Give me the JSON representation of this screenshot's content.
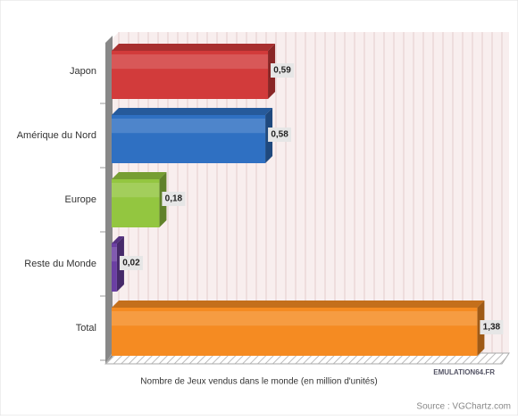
{
  "chart_data": {
    "type": "bar3d",
    "categories": [
      "Japon",
      "Amérique du Nord",
      "Europe",
      "Reste du Monde",
      "Total"
    ],
    "values": [
      0.59,
      0.58,
      0.18,
      0.02,
      1.38
    ],
    "value_labels": [
      "0,59",
      "0,58",
      "0,18",
      "0,02",
      "1,38"
    ],
    "colors": [
      "#d23b3b",
      "#2f70c2",
      "#93c640",
      "#6b3fa3",
      "#f58b22"
    ],
    "xlim": [
      0,
      1.5
    ],
    "x_label": "Nombre de Jeux vendus dans le monde (en million d'unités)",
    "watermark": "EMULATION64.FR",
    "source": "Source : VGChartz.com"
  }
}
